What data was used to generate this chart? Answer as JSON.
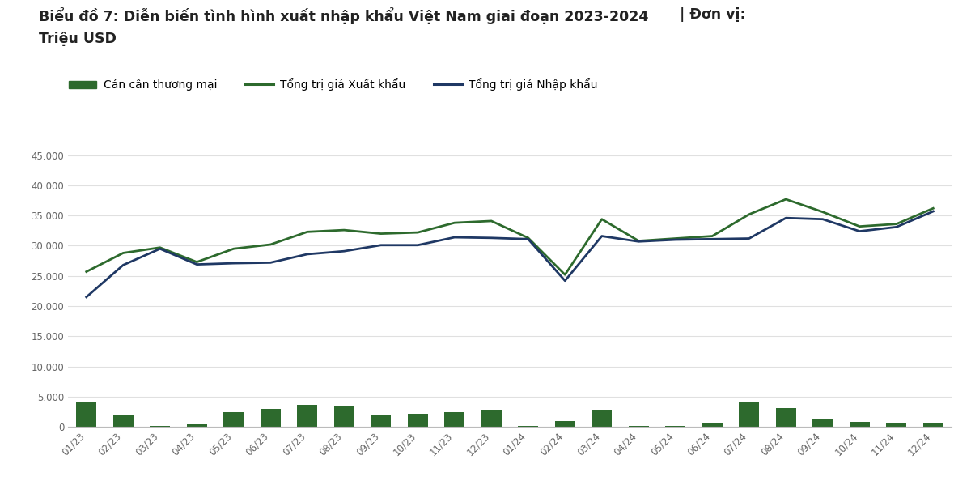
{
  "title_line1_bold": "Biểu đồ 7: Diễn biến tình hình xuất nhập khẩu Việt Nam giai đoạn 2023-2024",
  "title_line1_normal": " | Đơn vị:",
  "title_line2": "Triệu USD",
  "background_color": "#ffffff",
  "bar_color": "#2d6a2d",
  "export_line_color": "#2d6a2d",
  "import_line_color": "#1f3864",
  "text_color": "#222222",
  "tick_color": "#666666",
  "grid_color": "#e0e0e0",
  "labels": [
    "01/23",
    "02/23",
    "03/23",
    "04/23",
    "05/23",
    "06/23",
    "07/23",
    "08/23",
    "09/23",
    "10/23",
    "11/23",
    "12/23",
    "01/24",
    "02/24",
    "03/24",
    "04/24",
    "05/24",
    "06/24",
    "07/24",
    "08/24",
    "09/24",
    "10/24",
    "11/24",
    "12/24"
  ],
  "export_values": [
    25700,
    28800,
    29700,
    27300,
    29500,
    30200,
    32300,
    32600,
    32000,
    32200,
    33800,
    34100,
    31300,
    25200,
    34400,
    30800,
    31200,
    31600,
    35200,
    37700,
    35600,
    33200,
    33600,
    36200
  ],
  "import_values": [
    21500,
    26800,
    29500,
    26900,
    27100,
    27200,
    28600,
    29100,
    30100,
    30100,
    31400,
    31300,
    31100,
    24200,
    31600,
    30700,
    31000,
    31100,
    31200,
    34600,
    34400,
    32400,
    33100,
    35700
  ],
  "trade_balance": [
    4200,
    2000,
    200,
    400,
    2400,
    3000,
    3700,
    3500,
    1900,
    2100,
    2400,
    2800,
    200,
    1000,
    2800,
    100,
    200,
    500,
    4000,
    3100,
    1200,
    800,
    500,
    500
  ],
  "ylim": [
    0,
    45000
  ],
  "yticks": [
    0,
    5000,
    10000,
    15000,
    20000,
    25000,
    30000,
    35000,
    40000,
    45000
  ],
  "legend_labels": [
    "Cán cân thương mại",
    "Tổng trị giá Xuất khẩu",
    "Tổng trị giá Nhập khẩu"
  ]
}
